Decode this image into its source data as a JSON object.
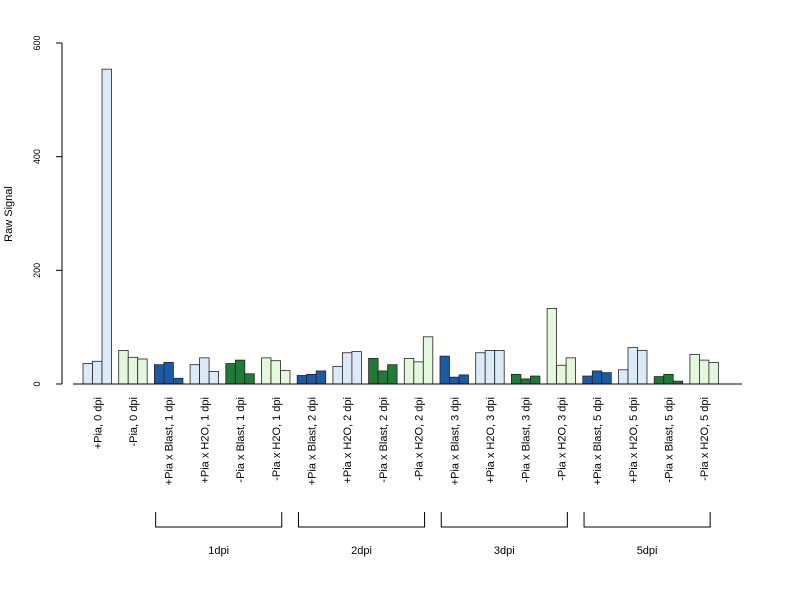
{
  "chart_data": {
    "type": "bar",
    "title": "",
    "xlabel": "",
    "ylabel": "Raw Signal",
    "ylim": [
      0,
      600
    ],
    "yticks": [
      "0",
      "200",
      "400",
      "600"
    ],
    "grid": false,
    "colors": {
      "dark_blue": "#1c5aa6",
      "light_blue": "#dce9f7",
      "dark_green": "#217a37",
      "light_green": "#e4f7dc",
      "outline": "#222222"
    },
    "groups": [
      {
        "label": "+Pia, 0 dpi",
        "color": "light_blue",
        "values": [
          36,
          40,
          554
        ]
      },
      {
        "label": "-Pia, 0 dpi",
        "color": "light_green",
        "values": [
          59,
          47,
          44
        ]
      },
      {
        "label": "+Pia x Blast, 1 dpi",
        "color": "dark_blue",
        "values": [
          34,
          38,
          10
        ]
      },
      {
        "label": "+Pia x H2O, 1 dpi",
        "color": "light_blue",
        "values": [
          34,
          46,
          22
        ]
      },
      {
        "label": "-Pia x Blast, 1 dpi",
        "color": "dark_green",
        "values": [
          36,
          42,
          18
        ]
      },
      {
        "label": "-Pia x H2O, 1 dpi",
        "color": "light_green",
        "values": [
          46,
          41,
          24
        ]
      },
      {
        "label": "+Pia x Blast, 2 dpi",
        "color": "dark_blue",
        "values": [
          15,
          17,
          23
        ]
      },
      {
        "label": "+Pia x H2O, 2 dpi",
        "color": "light_blue",
        "values": [
          31,
          55,
          57
        ]
      },
      {
        "label": "-Pia x Blast, 2 dpi",
        "color": "dark_green",
        "values": [
          45,
          23,
          34
        ]
      },
      {
        "label": "-Pia x H2O, 2 dpi",
        "color": "light_green",
        "values": [
          45,
          39,
          83
        ]
      },
      {
        "label": "+Pia x Blast, 3 dpi",
        "color": "dark_blue",
        "values": [
          49,
          12,
          16
        ]
      },
      {
        "label": "+Pia x H2O, 3 dpi",
        "color": "light_blue",
        "values": [
          55,
          59,
          59
        ]
      },
      {
        "label": "-Pia x Blast, 3 dpi",
        "color": "dark_green",
        "values": [
          17,
          9,
          14
        ]
      },
      {
        "label": "-Pia x H2O, 3 dpi",
        "color": "light_green",
        "values": [
          133,
          33,
          46
        ]
      },
      {
        "label": "+Pia x Blast, 5 dpi",
        "color": "dark_blue",
        "values": [
          14,
          23,
          20
        ]
      },
      {
        "label": "+Pia x H2O, 5 dpi",
        "color": "light_blue",
        "values": [
          25,
          64,
          59
        ]
      },
      {
        "label": "-Pia x Blast, 5 dpi",
        "color": "dark_green",
        "values": [
          13,
          17,
          5
        ]
      },
      {
        "label": "-Pia x H2O, 5 dpi",
        "color": "light_green",
        "values": [
          52,
          42,
          38
        ]
      }
    ],
    "brackets": [
      {
        "label": "1dpi",
        "from": 2,
        "to": 5
      },
      {
        "label": "2dpi",
        "from": 6,
        "to": 9
      },
      {
        "label": "3dpi",
        "from": 10,
        "to": 13
      },
      {
        "label": "5dpi",
        "from": 14,
        "to": 17
      }
    ]
  }
}
